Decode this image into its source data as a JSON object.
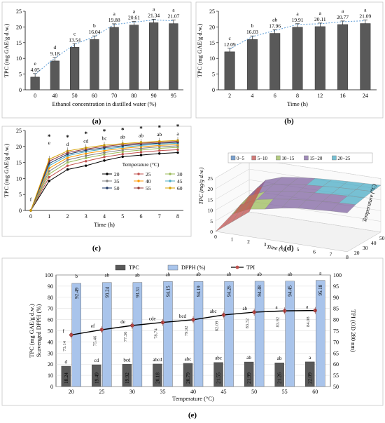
{
  "panel_labels": [
    "(a)",
    "(b)",
    "(c)",
    "(d)",
    "(e)"
  ],
  "colors": {
    "bar_dark": "#595959",
    "bar_light": "#a9c4eb",
    "trend_dotted": "#5b9bd5",
    "tpi_line": "#000000",
    "tpi_marker": "#c0504d"
  },
  "chart_data": [
    {
      "panel": "a",
      "type": "bar",
      "xlabel": "Ethanol concentration in distilled water (%)",
      "ylabel": "TPC (mg GAE/g d.w.)",
      "ylim": [
        0,
        25
      ],
      "yticks": [
        0,
        5,
        10,
        15,
        20,
        25
      ],
      "categories": [
        "0",
        "40",
        "50",
        "60",
        "70",
        "80",
        "90",
        "95"
      ],
      "values": [
        4.05,
        9.18,
        13.54,
        16.04,
        19.88,
        20.61,
        21.34,
        21.07
      ],
      "value_labels": [
        "4.05",
        "9.18",
        "13.54",
        "16.04",
        "19.88",
        "20.61",
        "21.34",
        "21.07"
      ],
      "letters": [
        "e",
        "d",
        "c",
        "b",
        "a",
        "a",
        "a",
        "a"
      ],
      "trendline": "dotted",
      "grid": false
    },
    {
      "panel": "b",
      "type": "bar",
      "xlabel": "Time (h)",
      "ylabel": "TPC (mg GAE/g d.w.)",
      "ylim": [
        0,
        25
      ],
      "yticks": [
        0,
        5,
        10,
        15,
        20,
        25
      ],
      "categories": [
        "2",
        "4",
        "6",
        "8",
        "12",
        "16",
        "24"
      ],
      "values": [
        12.09,
        16.03,
        17.96,
        19.91,
        20.11,
        20.77,
        21.09
      ],
      "value_labels": [
        "12.09",
        "16.03",
        "17.96",
        "19.91",
        "20.11",
        "20.77",
        "21.09"
      ],
      "letters": [
        "c",
        "b",
        "ab",
        "a",
        "a",
        "a",
        "a"
      ],
      "trendline": "dotted",
      "grid": false
    },
    {
      "panel": "c",
      "type": "line",
      "xlabel": "Time (h)",
      "ylabel": "TPC (mg GAE/g d.w.)",
      "ylim": [
        0,
        25
      ],
      "yticks": [
        0,
        5,
        10,
        15,
        20,
        25
      ],
      "x": [
        0,
        1,
        2,
        3,
        4,
        5,
        6,
        7,
        8
      ],
      "legend_title": "Temperature (°C)",
      "series": [
        {
          "name": "20",
          "color": "#000000",
          "values": [
            0,
            9.2,
            12.8,
            14.0,
            15.6,
            16.8,
            17.3,
            17.8,
            18.1
          ]
        },
        {
          "name": "25",
          "color": "#c0504d",
          "values": [
            0,
            10.4,
            14.0,
            15.4,
            16.7,
            17.6,
            18.2,
            18.7,
            19.0
          ]
        },
        {
          "name": "30",
          "color": "#9bbb59",
          "values": [
            0,
            11.4,
            15.0,
            16.4,
            17.5,
            18.3,
            18.9,
            19.4,
            19.7
          ]
        },
        {
          "name": "35",
          "color": "#7f7f7f",
          "values": [
            0,
            12.3,
            15.8,
            17.1,
            18.1,
            18.9,
            19.4,
            19.9,
            20.2
          ]
        },
        {
          "name": "40",
          "color": "#ff9900",
          "values": [
            0,
            13.2,
            16.5,
            17.8,
            18.7,
            19.4,
            19.9,
            20.3,
            20.6
          ]
        },
        {
          "name": "45",
          "color": "#4bacc6",
          "values": [
            0,
            14.0,
            17.1,
            18.4,
            19.2,
            19.8,
            20.3,
            20.7,
            21.0
          ]
        },
        {
          "name": "50",
          "color": "#1f3864",
          "values": [
            0,
            14.7,
            17.6,
            18.8,
            19.6,
            20.2,
            20.7,
            21.0,
            21.3
          ]
        },
        {
          "name": "55",
          "color": "#953735",
          "values": [
            0,
            15.4,
            18.1,
            19.2,
            20.0,
            20.6,
            21.0,
            21.3,
            21.6
          ]
        },
        {
          "name": "60",
          "color": "#d6a100",
          "values": [
            0,
            16.0,
            18.6,
            19.6,
            20.4,
            20.9,
            21.3,
            21.6,
            21.9
          ]
        }
      ],
      "annotations": [
        {
          "x": 0,
          "text": "f"
        },
        {
          "x": 1,
          "text": "e"
        },
        {
          "x": 2,
          "text": "d"
        },
        {
          "x": 3,
          "text": "cd"
        },
        {
          "x": 4,
          "text": "bc"
        },
        {
          "x": 5,
          "text": "ab"
        },
        {
          "x": 6,
          "text": "ab"
        },
        {
          "x": 7,
          "text": "ab"
        },
        {
          "x": 8,
          "text": "a"
        }
      ],
      "stars_at_x": [
        1,
        2,
        3,
        4,
        5,
        6,
        7,
        8
      ],
      "grid": false
    },
    {
      "panel": "d",
      "type": "surface",
      "xlabel": "Time (h)",
      "ylabel": "TPC (mg/g d.w.)",
      "zlabel": "Temperature (°C)",
      "time_ticks": [
        "0",
        "1",
        "2",
        "3",
        "4",
        "5",
        "6",
        "7",
        "8"
      ],
      "tpc_ticks": [
        "0",
        "5",
        "10",
        "15",
        "20",
        "25"
      ],
      "temp_ticks": [
        "20",
        "30",
        "40",
        "50",
        "60"
      ],
      "legend": [
        {
          "label": "0−5",
          "color": "#4f81bd"
        },
        {
          "label": "5−10",
          "color": "#c0504d"
        },
        {
          "label": "10−15",
          "color": "#9bbb59"
        },
        {
          "label": "15−20",
          "color": "#8064a2"
        },
        {
          "label": "20−25",
          "color": "#4bacc6"
        }
      ]
    },
    {
      "panel": "e",
      "type": "bar",
      "xlabel": "Temperature (°C)",
      "ylabel": "TPC (mg GAE/g d.w.) Scavenged DPPH (%)",
      "ylabel_line1": "TPC (mg GAE/g d.w.)",
      "ylabel_line2": "Scavenged DPPH (%)",
      "ylabel_right": "TPI (OD 280 nm)",
      "ylim": [
        0,
        100
      ],
      "yticks": [
        0,
        10,
        20,
        30,
        40,
        50,
        60,
        70,
        80,
        90,
        100
      ],
      "ylim_right": [
        50,
        100
      ],
      "yticks_right": [
        50,
        55,
        60,
        65,
        70,
        75,
        80,
        85,
        90,
        95,
        100
      ],
      "categories": [
        "20",
        "25",
        "30",
        "35",
        "40",
        "45",
        "50",
        "55",
        "60"
      ],
      "legend": [
        "TPC",
        "DPPH (%)",
        "TPI"
      ],
      "series": [
        {
          "name": "TPC",
          "values": [
            18.24,
            19.49,
            19.92,
            20.18,
            20.79,
            21.55,
            21.99,
            21.26,
            22.09
          ],
          "labels": [
            "18.24",
            "19.49",
            "19.92",
            "20.18",
            "20.79",
            "21.55",
            "21.99",
            "21.26",
            "22.09"
          ],
          "letters": [
            "d",
            "cd",
            "bcd",
            "abcd",
            "abc",
            "abc",
            "ab",
            "ab",
            "a"
          ]
        },
        {
          "name": "DPPH (%)",
          "values": [
            92.49,
            93.24,
            93.31,
            94.15,
            94.19,
            94.26,
            94.38,
            94.45,
            95.18
          ],
          "labels": [
            "92.49",
            "93.24",
            "93.31",
            "94.15",
            "94.19",
            "94.26",
            "94.38",
            "94.45",
            "95.18"
          ],
          "letters": [
            "b",
            "ab",
            "ab",
            "ab",
            "ab",
            "ab",
            "ab",
            "ab",
            "a"
          ]
        },
        {
          "name": "TPI",
          "axis": "right",
          "values": [
            73.14,
            75.46,
            77.36,
            78.74,
            79.92,
            82.09,
            83.32,
            83.92,
            84.08
          ],
          "labels": [
            "73.14",
            "75.46",
            "77.36",
            "78.74",
            "79.92",
            "82.09",
            "83.32",
            "83.92",
            "84.08"
          ],
          "letters": [
            "f",
            "ef",
            "de",
            "cde",
            "bcd",
            "abc",
            "ab",
            "a",
            "a"
          ]
        }
      ],
      "grid": true
    }
  ]
}
